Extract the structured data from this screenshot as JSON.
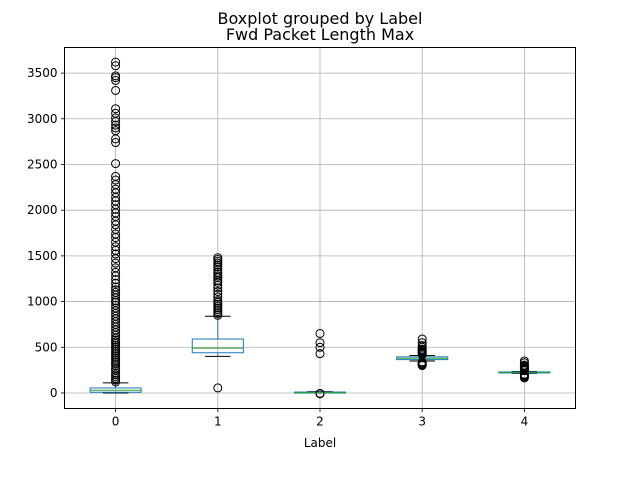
{
  "chart_data": {
    "type": "boxplot",
    "suptitle": "Boxplot grouped by Label",
    "title": "Fwd Packet Length Max",
    "xlabel": "Label",
    "ylabel": "",
    "categories": [
      "0",
      "1",
      "2",
      "3",
      "4"
    ],
    "ylim": [
      -170,
      3780
    ],
    "yticks": [
      0,
      500,
      1000,
      1500,
      2000,
      2500,
      3000,
      3500
    ],
    "grid": true,
    "colors": {
      "box": "#1f77b4",
      "median": "#2ca02c",
      "whisker": "#000000",
      "flier": "#000000",
      "grid": "#b0b0b0"
    },
    "boxes": [
      {
        "label": "0",
        "whislo": 0,
        "q1": 8,
        "med": 30,
        "q3": 55,
        "whishi": 110,
        "fliers": [
          120,
          140,
          160,
          180,
          200,
          220,
          250,
          270,
          300,
          320,
          340,
          360,
          380,
          400,
          420,
          440,
          460,
          480,
          500,
          520,
          540,
          560,
          580,
          600,
          630,
          660,
          690,
          720,
          750,
          780,
          810,
          840,
          870,
          900,
          930,
          960,
          990,
          1010,
          1040,
          1070,
          1100,
          1130,
          1160,
          1200,
          1240,
          1280,
          1320,
          1370,
          1420,
          1470,
          1520,
          1560,
          1600,
          1650,
          1700,
          1740,
          1790,
          1840,
          1880,
          1930,
          1970,
          2010,
          2060,
          2100,
          2140,
          2190,
          2230,
          2280,
          2330,
          2370,
          2510,
          2740,
          2780,
          2870,
          2900,
          2930,
          2970,
          3010,
          3060,
          3110,
          3310,
          3420,
          3450,
          3470,
          3580,
          3620
        ]
      },
      {
        "label": "1",
        "whislo": 400,
        "q1": 440,
        "med": 490,
        "q3": 590,
        "whishi": 840,
        "fliers": [
          55,
          850,
          870,
          890,
          910,
          930,
          950,
          970,
          990,
          1010,
          1050,
          1080,
          1110,
          1150,
          1180,
          1210,
          1230,
          1260,
          1280,
          1300,
          1320,
          1350,
          1380,
          1400,
          1420,
          1440,
          1460,
          1480
        ]
      },
      {
        "label": "2",
        "whislo": 0,
        "q1": 2,
        "med": 5,
        "q3": 10,
        "whishi": 15,
        "fliers": [
          -10,
          -5,
          430,
          500,
          550,
          650
        ]
      },
      {
        "label": "3",
        "whislo": 350,
        "q1": 365,
        "med": 380,
        "q3": 395,
        "whishi": 410,
        "fliers": [
          300,
          310,
          320,
          330,
          340,
          420,
          430,
          440,
          450,
          460,
          470,
          480,
          500,
          520,
          550,
          590
        ]
      },
      {
        "label": "4",
        "whislo": 215,
        "q1": 220,
        "med": 225,
        "q3": 230,
        "whishi": 235,
        "fliers": [
          165,
          175,
          185,
          195,
          205,
          245,
          255,
          265,
          275,
          285,
          295,
          305,
          330,
          350
        ]
      }
    ]
  }
}
